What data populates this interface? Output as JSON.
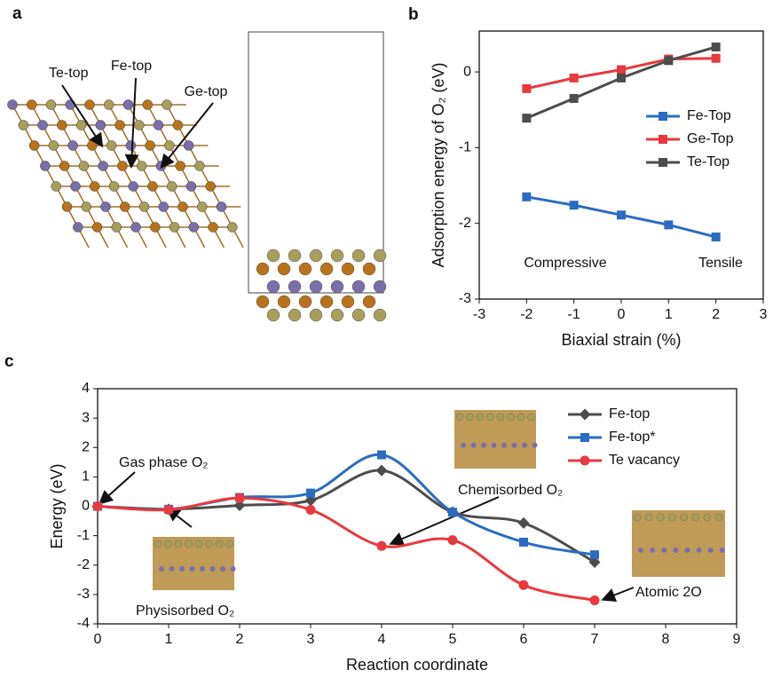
{
  "panel_a": {
    "label": "a",
    "annotations": [
      "Te-top",
      "Fe-top",
      "Ge-top"
    ]
  },
  "chart_data": [
    {
      "type": "line",
      "panel_label": "b",
      "x_label": "Biaxial strain (%)",
      "y_label": "Adsorption energy of O₂ (eV)",
      "x": [
        -2,
        -1,
        0,
        1,
        2
      ],
      "xlim": [
        -3,
        3
      ],
      "xticks": [
        -3,
        -2,
        -1,
        0,
        1,
        2,
        3
      ],
      "ylim": [
        -3,
        0.54
      ],
      "yticks": [
        -3,
        -2,
        -1,
        0
      ],
      "smooth": false,
      "legend": "upper right",
      "annotations": [
        "Compressive",
        "Tensile"
      ],
      "series": [
        {
          "name": "Fe-Top",
          "color": "#2b6cc0",
          "marker": "square",
          "values": [
            -1.65,
            -1.76,
            -1.89,
            -2.02,
            -2.18
          ]
        },
        {
          "name": "Ge-Top",
          "color": "#e8393e",
          "marker": "square",
          "values": [
            -0.22,
            -0.08,
            0.03,
            0.17,
            0.18
          ]
        },
        {
          "name": "Te-Top",
          "color": "#4d4d4d",
          "marker": "square",
          "values": [
            -0.61,
            -0.35,
            -0.08,
            0.15,
            0.33
          ]
        }
      ]
    },
    {
      "type": "line",
      "panel_label": "c",
      "x_label": "Reaction coordinate",
      "y_label": "Energy (eV)",
      "x": [
        0,
        1,
        2,
        3,
        4,
        5,
        6,
        7
      ],
      "xlim": [
        0,
        9
      ],
      "xticks": [
        0,
        1,
        2,
        3,
        4,
        5,
        6,
        7,
        8,
        9
      ],
      "ylim": [
        -4,
        4
      ],
      "yticks": [
        -4,
        -3,
        -2,
        -1,
        0,
        1,
        2,
        3,
        4
      ],
      "smooth": true,
      "legend": "upper right",
      "annotations": [
        "Gas phase O₂",
        "Chemisorbed O₂",
        "Physisorbed O₂",
        "Atomic 2O"
      ],
      "series": [
        {
          "name": "Fe-top",
          "color": "#4d4d4d",
          "marker": "diamond",
          "values": [
            0,
            -0.1,
            0.03,
            0.2,
            1.22,
            -0.2,
            -0.57,
            -1.9
          ]
        },
        {
          "name": "Fe-top*",
          "color": "#2b6cc0",
          "marker": "square",
          "values": [
            0,
            -0.1,
            0.3,
            0.45,
            1.75,
            -0.2,
            -1.22,
            -1.65
          ]
        },
        {
          "name": "Te vacancy",
          "color": "#e8393e",
          "marker": "circle",
          "values": [
            0,
            -0.12,
            0.28,
            -0.12,
            -1.35,
            -1.15,
            -2.68,
            -3.2
          ]
        }
      ]
    }
  ]
}
